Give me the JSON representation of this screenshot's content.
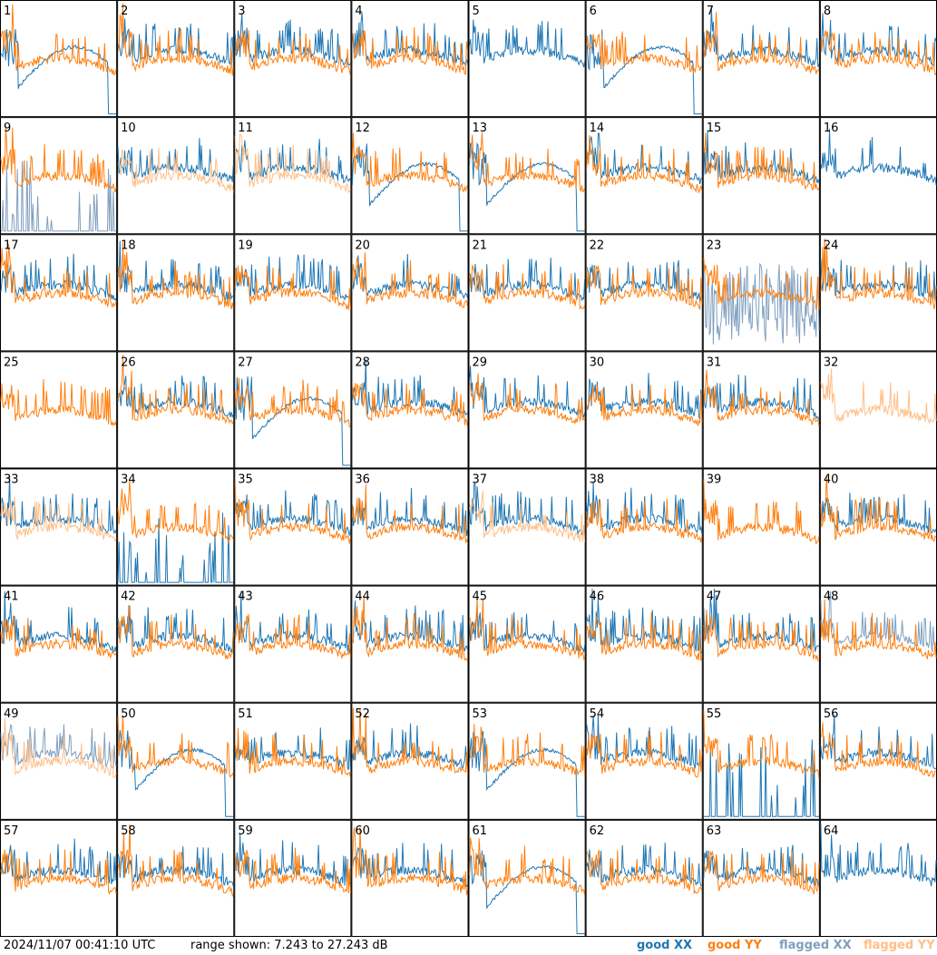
{
  "chart_data": {
    "type": "line",
    "timestamp": "2024/11/07 00:41:10 UTC",
    "range_text": "range shown: 7.243 to 27.243 dB",
    "ylim": [
      7.243,
      27.243
    ],
    "legend": [
      {
        "label": "good XX",
        "color": "#1f77b4"
      },
      {
        "label": "good YY",
        "color": "#ff7f0e"
      },
      {
        "label": "flagged XX",
        "color": "#7f9fbf"
      },
      {
        "label": "flagged YY",
        "color": "#ffbf87"
      }
    ],
    "panels": [
      {
        "n": "1",
        "xx": "good",
        "yy": "good",
        "shape": "drop"
      },
      {
        "n": "2",
        "xx": "good",
        "yy": "good",
        "shape": "normal"
      },
      {
        "n": "3",
        "xx": "good",
        "yy": "good",
        "shape": "normal"
      },
      {
        "n": "4",
        "xx": "good",
        "yy": "good",
        "shape": "normal"
      },
      {
        "n": "5",
        "xx": "good",
        "yy": "good",
        "shape": "xxonly"
      },
      {
        "n": "6",
        "xx": "good",
        "yy": "good",
        "shape": "drop"
      },
      {
        "n": "7",
        "xx": "good",
        "yy": "good",
        "shape": "normal"
      },
      {
        "n": "8",
        "xx": "good",
        "yy": "good",
        "shape": "normal"
      },
      {
        "n": "9",
        "xx": "flagged",
        "yy": "good",
        "shape": "spikes"
      },
      {
        "n": "10",
        "xx": "good",
        "yy": "flagged",
        "shape": "normal"
      },
      {
        "n": "11",
        "xx": "good",
        "yy": "flagged",
        "shape": "normal"
      },
      {
        "n": "12",
        "xx": "good",
        "yy": "good",
        "shape": "drop"
      },
      {
        "n": "13",
        "xx": "good",
        "yy": "good",
        "shape": "drop"
      },
      {
        "n": "14",
        "xx": "good",
        "yy": "good",
        "shape": "normal"
      },
      {
        "n": "15",
        "xx": "good",
        "yy": "good",
        "shape": "normal"
      },
      {
        "n": "16",
        "xx": "good",
        "yy": "flagged",
        "shape": "xxonly"
      },
      {
        "n": "17",
        "xx": "good",
        "yy": "good",
        "shape": "normal"
      },
      {
        "n": "18",
        "xx": "good",
        "yy": "good",
        "shape": "normal"
      },
      {
        "n": "19",
        "xx": "good",
        "yy": "good",
        "shape": "normal"
      },
      {
        "n": "20",
        "xx": "good",
        "yy": "good",
        "shape": "normal"
      },
      {
        "n": "21",
        "xx": "good",
        "yy": "good",
        "shape": "normal"
      },
      {
        "n": "22",
        "xx": "good",
        "yy": "good",
        "shape": "normal"
      },
      {
        "n": "23",
        "xx": "flagged",
        "yy": "good",
        "shape": "noisy"
      },
      {
        "n": "24",
        "xx": "good",
        "yy": "good",
        "shape": "normal"
      },
      {
        "n": "25",
        "xx": "good",
        "yy": "good",
        "shape": "yyonly"
      },
      {
        "n": "26",
        "xx": "good",
        "yy": "good",
        "shape": "normal"
      },
      {
        "n": "27",
        "xx": "good",
        "yy": "good",
        "shape": "drop"
      },
      {
        "n": "28",
        "xx": "good",
        "yy": "good",
        "shape": "normal"
      },
      {
        "n": "29",
        "xx": "good",
        "yy": "good",
        "shape": "normal"
      },
      {
        "n": "30",
        "xx": "good",
        "yy": "good",
        "shape": "normal"
      },
      {
        "n": "31",
        "xx": "good",
        "yy": "good",
        "shape": "normal"
      },
      {
        "n": "32",
        "xx": "flagged",
        "yy": "flagged",
        "shape": "yyonly"
      },
      {
        "n": "33",
        "xx": "good",
        "yy": "flagged",
        "shape": "normal"
      },
      {
        "n": "34",
        "xx": "good",
        "yy": "good",
        "shape": "spikes"
      },
      {
        "n": "35",
        "xx": "good",
        "yy": "good",
        "shape": "normal"
      },
      {
        "n": "36",
        "xx": "good",
        "yy": "good",
        "shape": "normal"
      },
      {
        "n": "37",
        "xx": "good",
        "yy": "flagged",
        "shape": "normal"
      },
      {
        "n": "38",
        "xx": "good",
        "yy": "good",
        "shape": "normal"
      },
      {
        "n": "39",
        "xx": "good",
        "yy": "good",
        "shape": "yyonly"
      },
      {
        "n": "40",
        "xx": "good",
        "yy": "good",
        "shape": "normal"
      },
      {
        "n": "41",
        "xx": "good",
        "yy": "good",
        "shape": "normal"
      },
      {
        "n": "42",
        "xx": "good",
        "yy": "good",
        "shape": "normal"
      },
      {
        "n": "43",
        "xx": "good",
        "yy": "good",
        "shape": "normal"
      },
      {
        "n": "44",
        "xx": "good",
        "yy": "good",
        "shape": "normal"
      },
      {
        "n": "45",
        "xx": "good",
        "yy": "good",
        "shape": "normal"
      },
      {
        "n": "46",
        "xx": "good",
        "yy": "good",
        "shape": "normal"
      },
      {
        "n": "47",
        "xx": "good",
        "yy": "good",
        "shape": "normal"
      },
      {
        "n": "48",
        "xx": "flagged",
        "yy": "good",
        "shape": "normal"
      },
      {
        "n": "49",
        "xx": "flagged",
        "yy": "flagged",
        "shape": "normal"
      },
      {
        "n": "50",
        "xx": "good",
        "yy": "good",
        "shape": "drop"
      },
      {
        "n": "51",
        "xx": "good",
        "yy": "good",
        "shape": "normal"
      },
      {
        "n": "52",
        "xx": "good",
        "yy": "good",
        "shape": "normal"
      },
      {
        "n": "53",
        "xx": "good",
        "yy": "good",
        "shape": "drop"
      },
      {
        "n": "54",
        "xx": "good",
        "yy": "good",
        "shape": "normal"
      },
      {
        "n": "55",
        "xx": "good",
        "yy": "good",
        "shape": "spikes"
      },
      {
        "n": "56",
        "xx": "good",
        "yy": "good",
        "shape": "normal"
      },
      {
        "n": "57",
        "xx": "good",
        "yy": "good",
        "shape": "normal"
      },
      {
        "n": "58",
        "xx": "good",
        "yy": "good",
        "shape": "normal"
      },
      {
        "n": "59",
        "xx": "good",
        "yy": "good",
        "shape": "normal"
      },
      {
        "n": "60",
        "xx": "good",
        "yy": "good",
        "shape": "normal"
      },
      {
        "n": "61",
        "xx": "good",
        "yy": "good",
        "shape": "drop"
      },
      {
        "n": "62",
        "xx": "good",
        "yy": "good",
        "shape": "normal"
      },
      {
        "n": "63",
        "xx": "good",
        "yy": "good",
        "shape": "normal"
      },
      {
        "n": "64",
        "xx": "good",
        "yy": "flagged",
        "shape": "xxonly"
      }
    ]
  }
}
